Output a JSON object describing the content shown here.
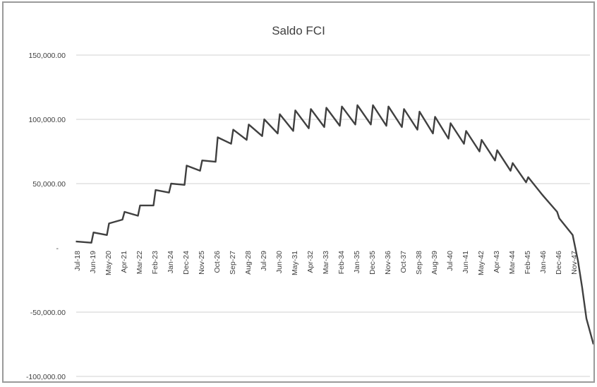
{
  "chart_data": {
    "type": "line",
    "title": "Saldo FCI",
    "xlabel": "",
    "ylabel": "",
    "ylim": [
      -100000,
      150000
    ],
    "y_ticks": [
      "150,000.00",
      "100,000.00",
      "50,000.00",
      "-",
      "-50,000.00",
      "-100,000.00"
    ],
    "y_tick_values": [
      150000,
      100000,
      50000,
      0,
      -50000,
      -100000
    ],
    "grid": true,
    "legend": "none",
    "line_color": "#404040",
    "x_tick_labels": [
      "Jul-18",
      "Jun-19",
      "May-20",
      "Apr-21",
      "Mar-22",
      "Feb-23",
      "Jan-24",
      "Dec-24",
      "Nov-25",
      "Oct-26",
      "Sep-27",
      "Aug-28",
      "Jul-29",
      "Jun-30",
      "May-31",
      "Apr-32",
      "Mar-33",
      "Feb-34",
      "Jan-35",
      "Dec-35",
      "Nov-36",
      "Oct-37",
      "Sep-38",
      "Aug-39",
      "Jul-40",
      "Jun-41",
      "May-42",
      "Apr-43",
      "Mar-44",
      "Feb-45",
      "Jan-46",
      "Dec-46",
      "Nov-47"
    ],
    "series": [
      {
        "name": "",
        "points": [
          [
            "Jul-18",
            5000
          ],
          [
            "Jun-19",
            4000
          ],
          [
            "Jun-19",
            12000
          ],
          [
            "May-20",
            10000
          ],
          [
            "May-20",
            19000
          ],
          [
            "Apr-21",
            22000
          ],
          [
            "Apr-21",
            28000
          ],
          [
            "Mar-22",
            25000
          ],
          [
            "Mar-22",
            33000
          ],
          [
            "Feb-23",
            33000
          ],
          [
            "Feb-23",
            45000
          ],
          [
            "Jan-24",
            43000
          ],
          [
            "Jan-24",
            50000
          ],
          [
            "Dec-24",
            49000
          ],
          [
            "Dec-24",
            64000
          ],
          [
            "Nov-25",
            60000
          ],
          [
            "Nov-25",
            68000
          ],
          [
            "Oct-26",
            67000
          ],
          [
            "Oct-26",
            86000
          ],
          [
            "Sep-27",
            81000
          ],
          [
            "Sep-27",
            92000
          ],
          [
            "Aug-28",
            84000
          ],
          [
            "Aug-28",
            96000
          ],
          [
            "Jul-29",
            87000
          ],
          [
            "Jul-29",
            100000
          ],
          [
            "Jun-30",
            89000
          ],
          [
            "Jun-30",
            104000
          ],
          [
            "May-31",
            91000
          ],
          [
            "May-31",
            107000
          ],
          [
            "Apr-32",
            93000
          ],
          [
            "Apr-32",
            108000
          ],
          [
            "Mar-33",
            94000
          ],
          [
            "Mar-33",
            109000
          ],
          [
            "Feb-34",
            95000
          ],
          [
            "Feb-34",
            110000
          ],
          [
            "Jan-35",
            96000
          ],
          [
            "Jan-35",
            111000
          ],
          [
            "Dec-35",
            96000
          ],
          [
            "Dec-35",
            111000
          ],
          [
            "Nov-36",
            95000
          ],
          [
            "Nov-36",
            110000
          ],
          [
            "Oct-37",
            94000
          ],
          [
            "Oct-37",
            108000
          ],
          [
            "Sep-38",
            92000
          ],
          [
            "Sep-38",
            106000
          ],
          [
            "Aug-39",
            89000
          ],
          [
            "Aug-39",
            102000
          ],
          [
            "Jul-40",
            85000
          ],
          [
            "Jul-40",
            97000
          ],
          [
            "Jun-41",
            81000
          ],
          [
            "Jun-41",
            91000
          ],
          [
            "May-42",
            75000
          ],
          [
            "May-42",
            84000
          ],
          [
            "Apr-43",
            68000
          ],
          [
            "Apr-43",
            76000
          ],
          [
            "Mar-44",
            60000
          ],
          [
            "Mar-44",
            66000
          ],
          [
            "Feb-45",
            51000
          ],
          [
            "Feb-45",
            55000
          ],
          [
            "Jan-46",
            42000
          ],
          [
            "Jan-46",
            40000
          ],
          [
            "Dec-46",
            28000
          ],
          [
            "Dec-46",
            23000
          ],
          [
            "Nov-47",
            10000
          ]
        ],
        "tail": [
          [
            -10000
          ],
          [
            -31000
          ],
          [
            -55000
          ],
          [
            -75000
          ]
        ]
      }
    ]
  }
}
